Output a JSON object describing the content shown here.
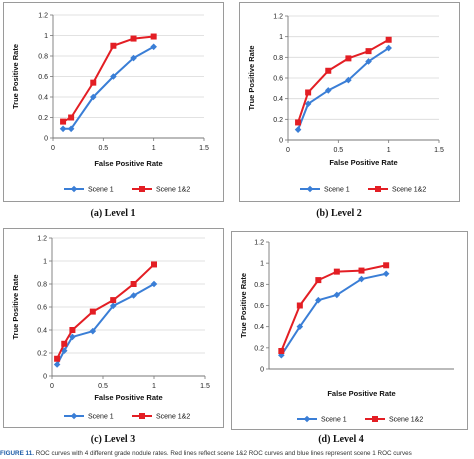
{
  "colors": {
    "scene1": "#3a7ed6",
    "scene12": "#e31e24",
    "grid": "#d9d9d9",
    "frame": "#9a9a9a"
  },
  "chart_data": [
    {
      "type": "line",
      "caption": "(a) Level 1",
      "xlabel": "False Positive Rate",
      "ylabel": "True Positive Rate",
      "xlim": [
        0,
        1.5
      ],
      "ylim": [
        0,
        1.2
      ],
      "xticks": [
        "0",
        "0.5",
        "1",
        "1.5"
      ],
      "yticks": [
        "0",
        "0.2",
        "0.4",
        "0.6",
        "0.8",
        "1",
        "1.2"
      ],
      "grid": "horizontal",
      "legend": "bottom",
      "series": [
        {
          "name": "Scene 1",
          "marker": "diamond",
          "x": [
            0.1,
            0.18,
            0.4,
            0.6,
            0.8,
            1.0
          ],
          "y": [
            0.09,
            0.09,
            0.4,
            0.6,
            0.78,
            0.89
          ]
        },
        {
          "name": "Scene 1&2",
          "marker": "square",
          "x": [
            0.1,
            0.18,
            0.4,
            0.6,
            0.8,
            1.0
          ],
          "y": [
            0.16,
            0.2,
            0.54,
            0.9,
            0.97,
            0.99
          ]
        }
      ]
    },
    {
      "type": "line",
      "caption": "(b) Level 2",
      "xlabel": "False Positive Rate",
      "ylabel": "True Positive Rate",
      "xlim": [
        0,
        1.5
      ],
      "ylim": [
        0,
        1.2
      ],
      "xticks": [
        "0",
        "0.5",
        "1",
        "1.5"
      ],
      "yticks": [
        "0",
        "0.2",
        "0.4",
        "0.6",
        "0.8",
        "1",
        "1.2"
      ],
      "grid": "horizontal",
      "legend": "bottom",
      "series": [
        {
          "name": "Scene 1",
          "marker": "diamond",
          "x": [
            0.1,
            0.2,
            0.4,
            0.6,
            0.8,
            1.0
          ],
          "y": [
            0.1,
            0.35,
            0.48,
            0.58,
            0.76,
            0.89
          ]
        },
        {
          "name": "Scene 1&2",
          "marker": "square",
          "x": [
            0.1,
            0.2,
            0.4,
            0.6,
            0.8,
            1.0
          ],
          "y": [
            0.17,
            0.46,
            0.67,
            0.79,
            0.86,
            0.97
          ]
        }
      ]
    },
    {
      "type": "line",
      "caption": "(c) Level 3",
      "xlabel": "False Positive Rate",
      "ylabel": "True Positive Rate",
      "xlim": [
        0,
        1.5
      ],
      "ylim": [
        0,
        1.2
      ],
      "xticks": [
        "0",
        "0.5",
        "1",
        "1.5"
      ],
      "yticks": [
        "0",
        "0.2",
        "0.4",
        "0.6",
        "0.8",
        "1",
        "1.2"
      ],
      "grid": "horizontal",
      "legend": "bottom",
      "series": [
        {
          "name": "Scene 1",
          "marker": "diamond",
          "x": [
            0.05,
            0.12,
            0.2,
            0.4,
            0.6,
            0.8,
            1.0
          ],
          "y": [
            0.1,
            0.22,
            0.34,
            0.39,
            0.61,
            0.7,
            0.8
          ]
        },
        {
          "name": "Scene 1&2",
          "marker": "square",
          "x": [
            0.05,
            0.12,
            0.2,
            0.4,
            0.6,
            0.8,
            1.0
          ],
          "y": [
            0.15,
            0.28,
            0.4,
            0.56,
            0.66,
            0.8,
            0.97
          ]
        }
      ]
    },
    {
      "type": "line",
      "caption": "(d) Level 4",
      "xlabel": "False Positive Rate",
      "ylabel": "True Positive Rate",
      "xlim": [
        0,
        1.5
      ],
      "ylim": [
        0,
        1.2
      ],
      "xticks": [],
      "yticks": [
        "0",
        "0.2",
        "0.4",
        "0.6",
        "0.8",
        "1",
        "1.2"
      ],
      "grid": "none",
      "legend": "bottom",
      "series": [
        {
          "name": "Scene 1",
          "marker": "diamond",
          "x": [
            0.1,
            0.25,
            0.4,
            0.55,
            0.75,
            0.95
          ],
          "y": [
            0.13,
            0.4,
            0.65,
            0.7,
            0.85,
            0.9
          ]
        },
        {
          "name": "Scene 1&2",
          "marker": "square",
          "x": [
            0.1,
            0.25,
            0.4,
            0.55,
            0.75,
            0.95
          ],
          "y": [
            0.17,
            0.6,
            0.84,
            0.92,
            0.93,
            0.98
          ]
        }
      ]
    }
  ],
  "figure_caption": {
    "label": "FIGURE 11.",
    "text": "ROC curves with 4 different grade nodule rates. Red lines reflect scene 1&2 ROC curves and blue lines represent scene 1 ROC curves"
  }
}
